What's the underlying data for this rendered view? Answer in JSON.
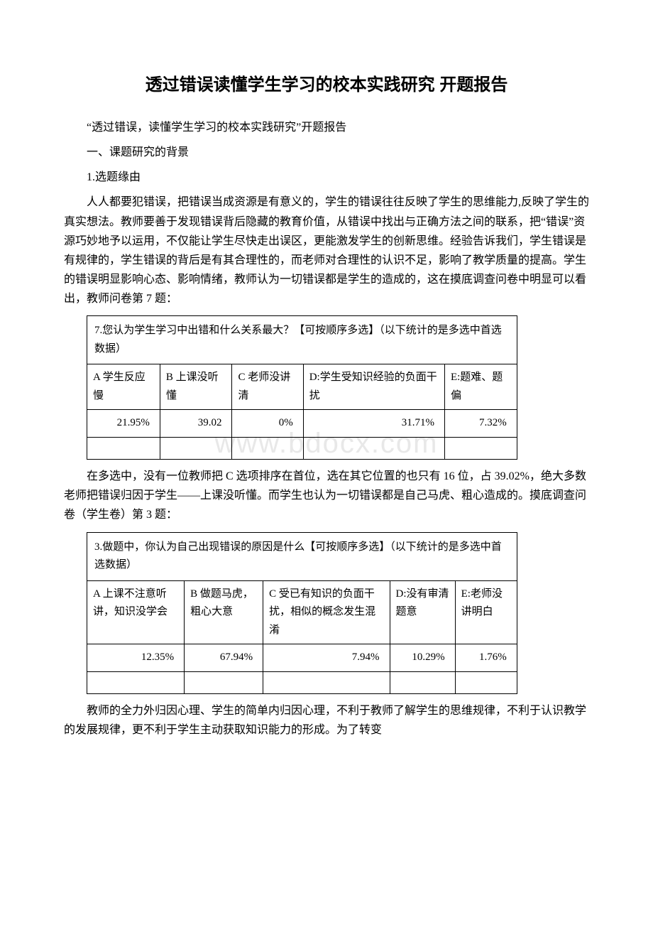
{
  "title": "透过错误读懂学生学习的校本实践研究 开题报告",
  "intro_line": "“透过错误，读懂学生学习的校本实践研究”开题报告",
  "section1": "一、课题研究的背景",
  "sub1": "1.选题缘由",
  "para1": "人人都要犯错误，把错误当成资源是有意义的，学生的错误往往反映了学生的思维能力,反映了学生的真实想法。教师要善于发现错误背后隐藏的教育价值，从错误中找出与正确方法之间的联系，把“错误”资源巧妙地予以运用，不仅能让学生尽快走出误区，更能激发学生的创新思维。经验告诉我们，学生错误是有规律的，学生错误的背后是有其合理性的，而老师对合理性的认识不足，影响了教学质量的提高。学生的错误明显影响心态、影响情绪，教师认为一切错误都是学生的造成的，这在摸底调查问卷中明显可以看出，教师问卷第 7 题：",
  "table1": {
    "caption": "7.您认为学生学习中出错和什么关系最大？【可按顺序多选】（以下统计的是多选中首选数据）",
    "options": [
      "A 学生反应慢",
      "B 上课没听懂",
      "C 老师没讲清",
      "D:学生受知识经验的负面干扰",
      "E:题难、题偏"
    ],
    "values": [
      "21.95%",
      "39.02",
      "0%",
      "31.71%",
      "7.32%"
    ]
  },
  "para2": "在多选中，没有一位教师把 C 选项排序在首位，选在其它位置的也只有 16 位，占 39.02%，绝大多数老师把错误归因于学生——上课没听懂。而学生也认为一切错误都是自己马虎、粗心造成的。摸底调查问卷（学生卷）第 3 题：",
  "table2": {
    "caption": "3.做题中，你认为自己出现错误的原因是什么【可按顺序多选】（以下统计的是多选中首选数据）",
    "options": [
      "A 上课不注意听讲，知识没学会",
      "B 做题马虎，粗心大意",
      "C 受已有知识的负面干扰，相似的概念发生混淆",
      "D:没有审清题意",
      "E:老师没讲明白"
    ],
    "values": [
      "12.35%",
      "67.94%",
      "7.94%",
      "10.29%",
      "1.76%"
    ]
  },
  "para3": "教师的全力外归因心理、学生的简单内归因心理，不利于教师了解学生的思维规律，不利于认识教学的发展规律，更不利于学生主动获取知识能力的形成。为了转变",
  "watermark": "www.bdocx.com"
}
